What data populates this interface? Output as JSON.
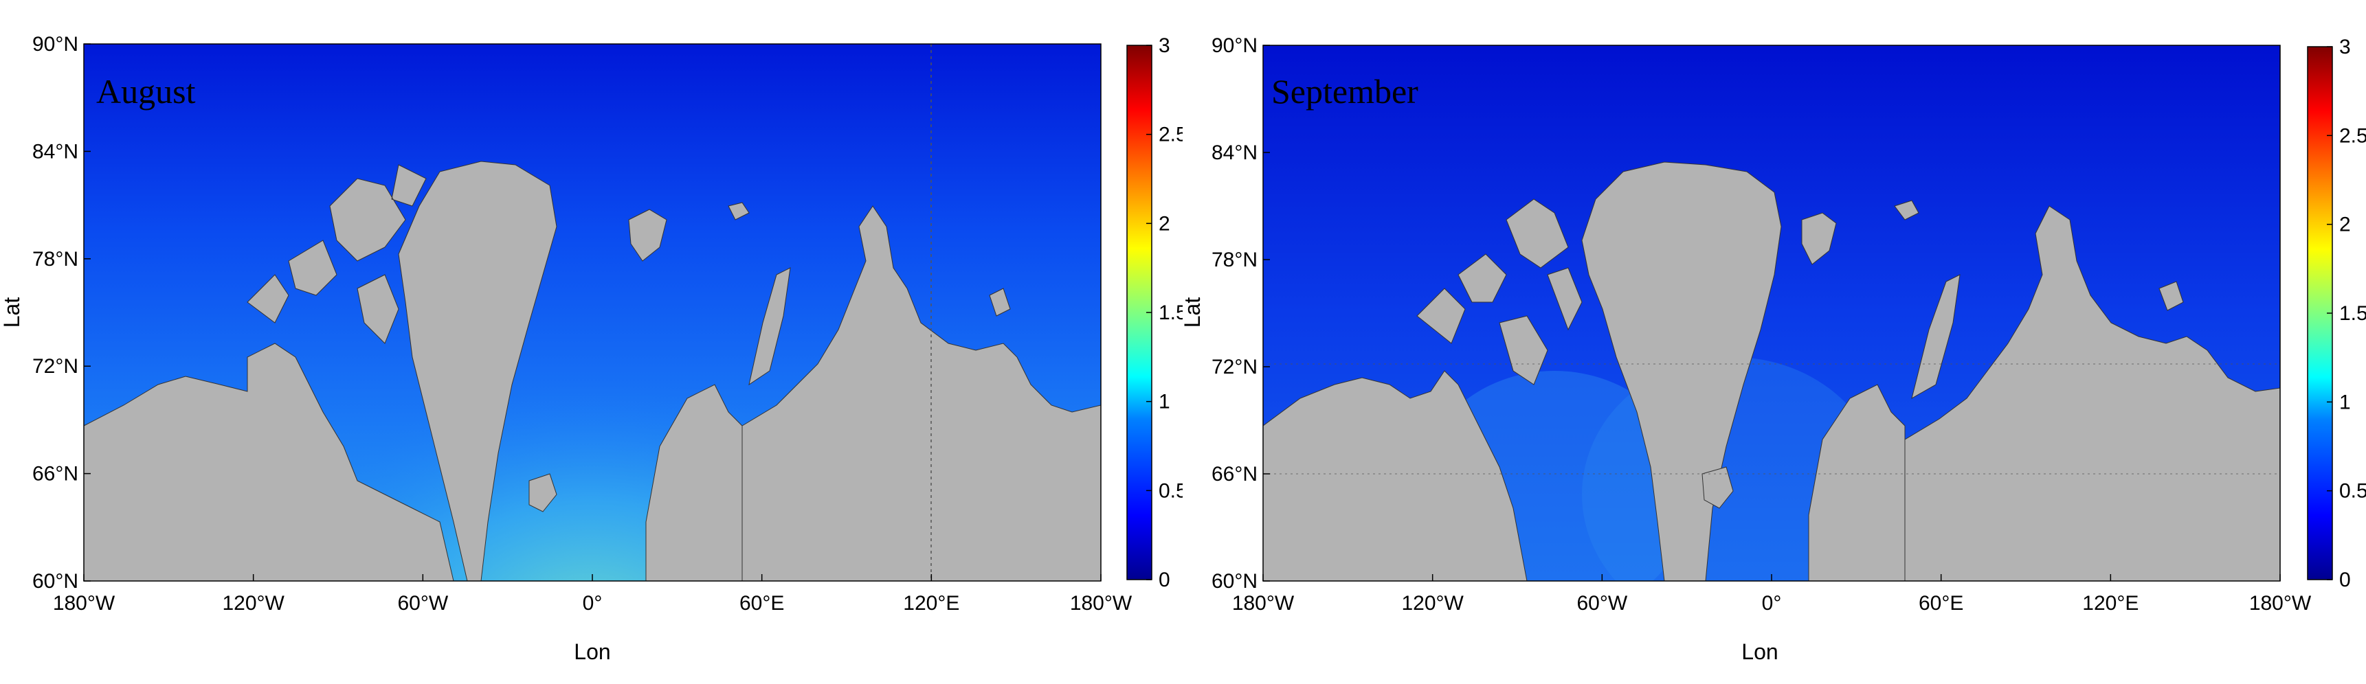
{
  "figure": {
    "colorbar_ticks": [
      "0",
      "0.5",
      "1",
      "1.5",
      "2",
      "2.5",
      "3"
    ],
    "colormap": [
      "#00008f",
      "#0000ff",
      "#0080ff",
      "#00ffff",
      "#80ff80",
      "#ffff00",
      "#ff8000",
      "#ff0000",
      "#800000"
    ],
    "land_color": "#b3b3b3",
    "panels": [
      {
        "month": "August",
        "xlabel": "Lon",
        "ylabel": "Lat",
        "x_ticks": [
          "180°W",
          "120°W",
          "60°W",
          "0°",
          "60°E",
          "120°E",
          "180°W"
        ],
        "y_ticks": [
          "60°N",
          "66°N",
          "72°N",
          "78°N",
          "84°N",
          "90°N"
        ]
      },
      {
        "month": "September",
        "xlabel": "Lon",
        "ylabel": "Lat",
        "x_ticks": [
          "180°W",
          "120°W",
          "60°W",
          "0°",
          "60°E",
          "120°E",
          "180°W"
        ],
        "y_ticks": [
          "60°N",
          "66°N",
          "72°N",
          "78°N",
          "84°N",
          "90°N"
        ]
      }
    ]
  }
}
